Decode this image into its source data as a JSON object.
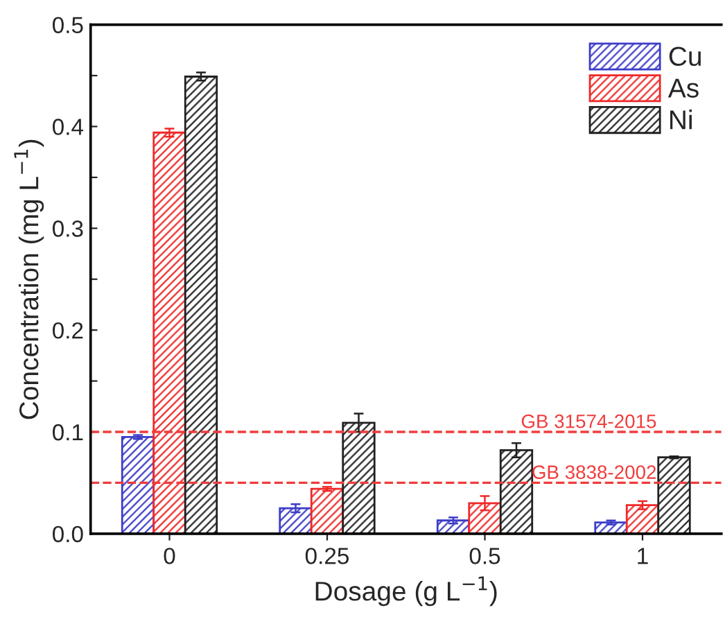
{
  "chart_data": {
    "type": "bar",
    "xlabel": "Dosage (g L$^{−1}$)",
    "ylabel": "Concentration (mg L$^{−1}$)",
    "categories": [
      "0",
      "0.25",
      "0.5",
      "1"
    ],
    "series": [
      {
        "name": "Cu",
        "color": "#3c3cc8",
        "values": [
          0.095,
          0.025,
          0.013,
          0.011
        ],
        "errors": [
          0.002,
          0.004,
          0.003,
          0.002
        ]
      },
      {
        "name": "As",
        "color": "#f02828",
        "values": [
          0.394,
          0.044,
          0.03,
          0.028
        ],
        "errors": [
          0.004,
          0.002,
          0.007,
          0.004
        ]
      },
      {
        "name": "Ni",
        "color": "#202020",
        "values": [
          0.449,
          0.109,
          0.082,
          0.075
        ],
        "errors": [
          0.004,
          0.009,
          0.007,
          0.001
        ]
      }
    ],
    "ylim": [
      0,
      0.5
    ],
    "yticks": [
      {
        "value": 0,
        "label": "0.0"
      },
      {
        "value": 0.05,
        "label": null
      },
      {
        "value": 0.1,
        "label": "0.1"
      },
      {
        "value": 0.15,
        "label": null
      },
      {
        "value": 0.2,
        "label": "0.2"
      },
      {
        "value": 0.25,
        "label": null
      },
      {
        "value": 0.3,
        "label": "0.3"
      },
      {
        "value": 0.35,
        "label": null
      },
      {
        "value": 0.4,
        "label": "0.4"
      },
      {
        "value": 0.45,
        "label": null
      },
      {
        "value": 0.5,
        "label": "0.5"
      }
    ],
    "ref_lines": [
      {
        "axis": "y",
        "value": 0.1,
        "label": "GB 31574-2015",
        "color": "#f03c3c",
        "line_style": "dashed"
      },
      {
        "axis": "y",
        "value": 0.05,
        "label": "GB 3838-2002",
        "color": "#f03c3c",
        "line_style": "dashed"
      }
    ],
    "legend": "top right",
    "grid": false
  }
}
